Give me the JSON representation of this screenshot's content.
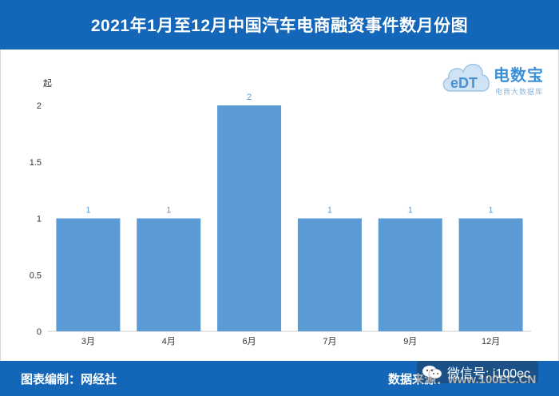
{
  "header": {
    "title": "2021年1月至12月中国汽车电商融资事件数月份图"
  },
  "footer": {
    "left_text": "图表编制：网经社",
    "right_text": "数据来源：www.100EC.CN"
  },
  "watermark": {
    "text": "微信号: i100ec"
  },
  "logo": {
    "brand": "电数宝",
    "badge": "eDT",
    "subtitle": "电商大数据库"
  },
  "colors": {
    "header": "#1467b8",
    "bar": "#5b9bd5",
    "data_label": "#5b9bd5"
  },
  "chart_data": {
    "type": "bar",
    "title": "2021年1月至12月中国汽车电商融资事件数月份图",
    "ylabel": "起",
    "xlabel": "",
    "categories": [
      "3月",
      "4月",
      "6月",
      "7月",
      "9月",
      "12月"
    ],
    "values": [
      1,
      1,
      2,
      1,
      1,
      1
    ],
    "ylim": [
      0,
      2
    ],
    "yticks": [
      "0",
      "0.5",
      "1",
      "1.5",
      "2"
    ],
    "data_labels": [
      "1",
      "1",
      "2",
      "1",
      "1",
      "1"
    ],
    "grid": false,
    "legend": "none"
  }
}
